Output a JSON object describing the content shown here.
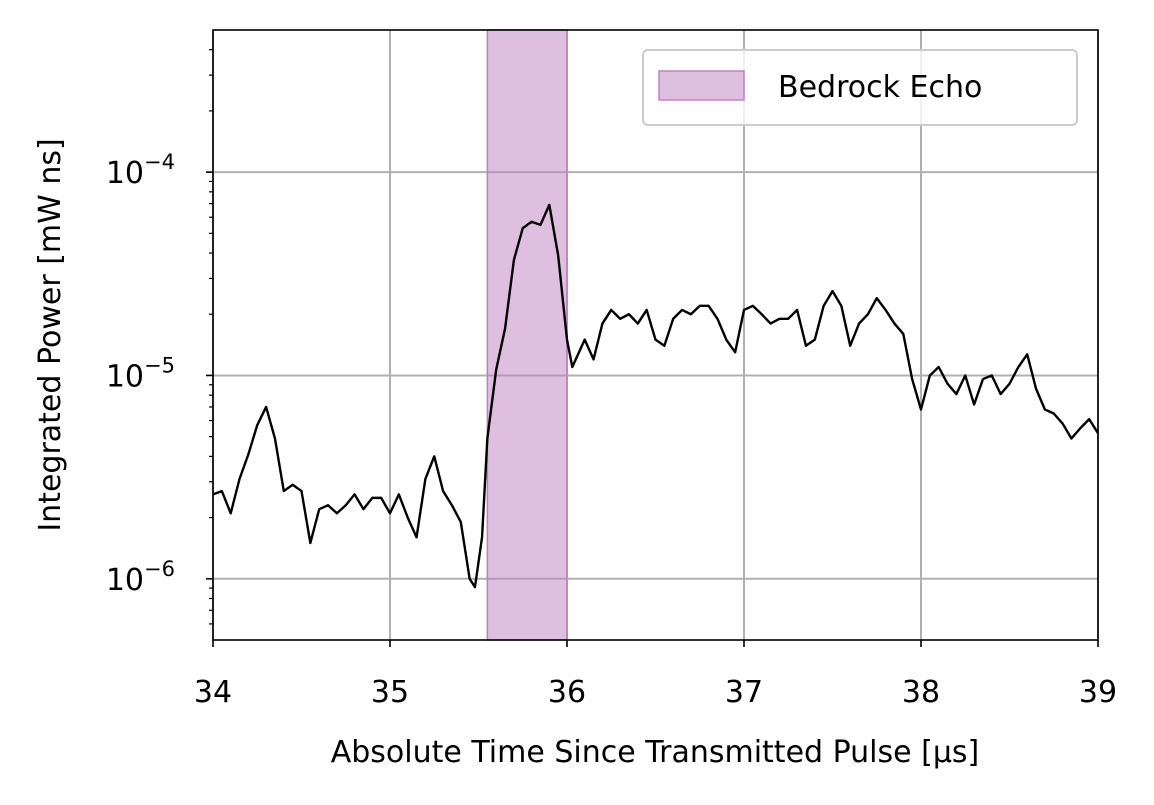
{
  "chart_data": {
    "type": "line",
    "xlabel": "Absolute Time Since Transmitted Pulse [μs]",
    "ylabel": "Integrated Power [mW ns]",
    "xlim": [
      34,
      39
    ],
    "ylim": [
      5e-07,
      0.0005
    ],
    "yscale": "log",
    "grid": true,
    "legend_position": "upper right",
    "xticks": [
      34,
      35,
      36,
      37,
      38,
      39
    ],
    "yticks": [
      {
        "value": 1e-06,
        "label": "10−6"
      },
      {
        "value": 1e-05,
        "label": "10−5"
      },
      {
        "value": 0.0001,
        "label": "10−4"
      }
    ],
    "yminorticks": [
      6e-07,
      7e-07,
      8e-07,
      9e-07,
      2e-06,
      3e-06,
      4e-06,
      5e-06,
      6e-06,
      7e-06,
      8e-06,
      9e-06,
      2e-05,
      3e-05,
      4e-05,
      5e-05,
      6e-05,
      7e-05,
      8e-05,
      9e-05,
      0.0002,
      0.0003,
      0.0004
    ],
    "spans": [
      {
        "name": "Bedrock Echo",
        "xlim": [
          35.55,
          36.0
        ],
        "color": "#c080c0",
        "alpha": 0.5
      }
    ],
    "x": [
      34.0,
      34.05,
      34.1,
      34.15,
      34.2,
      34.25,
      34.3,
      34.35,
      34.4,
      34.45,
      34.5,
      34.55,
      34.6,
      34.65,
      34.7,
      34.75,
      34.8,
      34.85,
      34.9,
      34.95,
      35.0,
      35.05,
      35.1,
      35.15,
      35.2,
      35.25,
      35.3,
      35.35,
      35.4,
      35.45,
      35.48,
      35.52,
      35.55,
      35.6,
      35.65,
      35.7,
      35.75,
      35.8,
      35.85,
      35.9,
      35.95,
      36.0,
      36.03,
      36.1,
      36.15,
      36.2,
      36.25,
      36.3,
      36.35,
      36.4,
      36.45,
      36.5,
      36.55,
      36.6,
      36.65,
      36.7,
      36.75,
      36.8,
      36.85,
      36.9,
      36.95,
      37.0,
      37.05,
      37.1,
      37.15,
      37.2,
      37.25,
      37.3,
      37.35,
      37.4,
      37.45,
      37.5,
      37.55,
      37.6,
      37.65,
      37.7,
      37.75,
      37.8,
      37.85,
      37.9,
      37.95,
      38.0,
      38.05,
      38.1,
      38.15,
      38.2,
      38.25,
      38.3,
      38.35,
      38.4,
      38.45,
      38.5,
      38.55,
      38.6,
      38.65,
      38.7,
      38.75,
      38.8,
      38.85,
      38.9,
      38.95,
      39.0
    ],
    "series": [
      {
        "color": "#000000",
        "values": [
          2.6e-06,
          2.7e-06,
          2.1e-06,
          3.1e-06,
          4.1e-06,
          5.7e-06,
          7e-06,
          4.9e-06,
          2.7e-06,
          2.9e-06,
          2.7e-06,
          1.5e-06,
          2.2e-06,
          2.3e-06,
          2.1e-06,
          2.3e-06,
          2.6e-06,
          2.2e-06,
          2.5e-06,
          2.5e-06,
          2.1e-06,
          2.6e-06,
          2e-06,
          1.6e-06,
          3.1e-06,
          4e-06,
          2.7e-06,
          2.3e-06,
          1.9e-06,
          1e-06,
          9.1e-07,
          1.6e-06,
          4.9e-06,
          1.07e-05,
          1.7e-05,
          3.7e-05,
          5.3e-05,
          5.7e-05,
          5.5e-05,
          6.9e-05,
          3.9e-05,
          1.5e-05,
          1.1e-05,
          1.5e-05,
          1.2e-05,
          1.8e-05,
          2.1e-05,
          1.9e-05,
          2e-05,
          1.8e-05,
          2.1e-05,
          1.5e-05,
          1.4e-05,
          1.9e-05,
          2.1e-05,
          2e-05,
          2.2e-05,
          2.2e-05,
          1.9e-05,
          1.5e-05,
          1.3e-05,
          2.1e-05,
          2.2e-05,
          2e-05,
          1.8e-05,
          1.9e-05,
          1.9e-05,
          2.1e-05,
          1.4e-05,
          1.5e-05,
          2.2e-05,
          2.6e-05,
          2.2e-05,
          1.4e-05,
          1.8e-05,
          2e-05,
          2.4e-05,
          2.1e-05,
          1.8e-05,
          1.6e-05,
          9.6e-06,
          6.8e-06,
          1e-05,
          1.1e-05,
          9.1e-06,
          8.1e-06,
          1e-05,
          7.2e-06,
          9.6e-06,
          1e-05,
          8.1e-06,
          9.1e-06,
          1.1e-05,
          1.27e-05,
          8.6e-06,
          6.8e-06,
          6.5e-06,
          5.8e-06,
          4.9e-06,
          5.5e-06,
          6.1e-06,
          5.2e-06
        ]
      }
    ]
  }
}
